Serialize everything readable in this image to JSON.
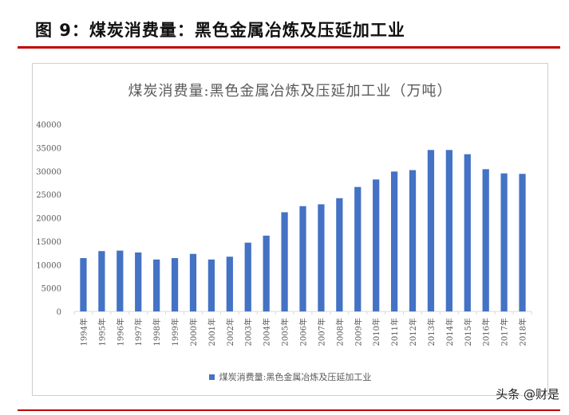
{
  "figure": {
    "title": "图 9：煤炭消费量：黑色金属冶炼及压延加工业",
    "watermark": "头条 @财是"
  },
  "colors": {
    "bar": "#4472C4",
    "accent_rule": "#c00000",
    "axis": "#d9d9d9",
    "text": "#595959"
  },
  "chart_data": {
    "type": "bar",
    "title": "煤炭消费量:黑色金属冶炼及压延加工业（万吨）",
    "xlabel": "",
    "ylabel": "",
    "ylim": [
      0,
      40000
    ],
    "yticks": [
      0,
      5000,
      10000,
      15000,
      20000,
      25000,
      30000,
      35000,
      40000
    ],
    "grid": false,
    "legend": "bottom",
    "categories": [
      "1994年",
      "1995年",
      "1996年",
      "1997年",
      "1998年",
      "1999年",
      "2000年",
      "2001年",
      "2002年",
      "2003年",
      "2004年",
      "2005年",
      "2006年",
      "2007年",
      "2008年",
      "2009年",
      "2010年",
      "2011年",
      "2012年",
      "2013年",
      "2014年",
      "2015年",
      "2016年",
      "2017年",
      "2018年"
    ],
    "series": [
      {
        "name": "煤炭消费量:黑色金属冶炼及压延加工业",
        "values": [
          11400,
          12900,
          13000,
          12600,
          11100,
          11400,
          12300,
          11100,
          11700,
          14700,
          16200,
          21200,
          22500,
          22900,
          24200,
          26600,
          28200,
          29900,
          30200,
          34500,
          34500,
          33600,
          30400,
          29500,
          29400
        ]
      }
    ]
  }
}
